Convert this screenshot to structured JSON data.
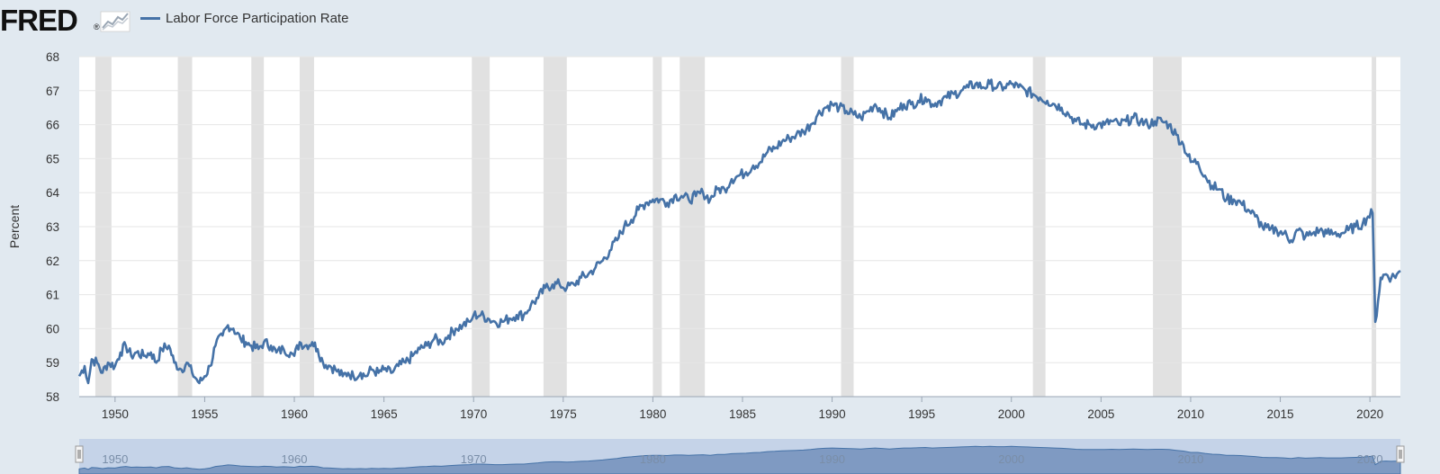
{
  "header": {
    "logo_text": "FRED",
    "logo_mark": "®",
    "legend_label": "Labor Force Participation Rate"
  },
  "colors": {
    "line": "#4572a7",
    "recession": "#e1e1e1",
    "grid": "#e6e6e6",
    "navigator_fill": "#7f9ac2",
    "navigator_bg": "#c5d3e8"
  },
  "icons": {
    "logo_graph": "fred-chart-icon",
    "legend": "legend-line-icon"
  },
  "chart_data": {
    "type": "line",
    "title": "",
    "xlabel": "",
    "ylabel": "Percent",
    "ylim": [
      58,
      68
    ],
    "xlim": [
      1948.0,
      2021.7
    ],
    "grid": "horizontal",
    "legend": "top-left",
    "y_ticks": [
      "58",
      "59",
      "60",
      "61",
      "62",
      "63",
      "64",
      "65",
      "66",
      "67",
      "68"
    ],
    "x_ticks": [
      "1950",
      "1955",
      "1960",
      "1965",
      "1970",
      "1975",
      "1980",
      "1985",
      "1990",
      "1995",
      "2000",
      "2005",
      "2010",
      "2015",
      "2020"
    ],
    "navigator_ticks": [
      "1950",
      "1960",
      "1970",
      "1980",
      "1990",
      "2000",
      "2010",
      "2020"
    ],
    "recessions": [
      [
        1948.9,
        1949.8
      ],
      [
        1953.5,
        1954.3
      ],
      [
        1957.6,
        1958.3
      ],
      [
        1960.3,
        1961.1
      ],
      [
        1969.9,
        1970.9
      ],
      [
        1973.9,
        1975.2
      ],
      [
        1980.0,
        1980.5
      ],
      [
        1981.5,
        1982.9
      ],
      [
        1990.5,
        1991.2
      ],
      [
        2001.2,
        2001.9
      ],
      [
        2007.9,
        2009.5
      ],
      [
        2020.1,
        2020.35
      ]
    ],
    "series": [
      {
        "name": "Labor Force Participation Rate",
        "points": [
          [
            1948.0,
            58.6
          ],
          [
            1948.3,
            58.9
          ],
          [
            1948.5,
            58.4
          ],
          [
            1948.7,
            59.1
          ],
          [
            1949.0,
            59.0
          ],
          [
            1949.3,
            58.7
          ],
          [
            1949.6,
            59.0
          ],
          [
            1950.0,
            58.9
          ],
          [
            1950.3,
            59.3
          ],
          [
            1950.6,
            59.5
          ],
          [
            1950.9,
            59.2
          ],
          [
            1951.2,
            59.3
          ],
          [
            1951.6,
            59.2
          ],
          [
            1952.0,
            59.3
          ],
          [
            1952.3,
            59.0
          ],
          [
            1952.6,
            59.4
          ],
          [
            1953.0,
            59.5
          ],
          [
            1953.3,
            59.0
          ],
          [
            1953.7,
            58.8
          ],
          [
            1954.0,
            59.0
          ],
          [
            1954.3,
            58.7
          ],
          [
            1954.7,
            58.4
          ],
          [
            1955.0,
            58.6
          ],
          [
            1955.3,
            58.9
          ],
          [
            1955.6,
            59.5
          ],
          [
            1956.0,
            59.8
          ],
          [
            1956.3,
            60.1
          ],
          [
            1956.6,
            60.0
          ],
          [
            1957.0,
            59.7
          ],
          [
            1957.3,
            59.6
          ],
          [
            1957.6,
            59.5
          ],
          [
            1958.0,
            59.4
          ],
          [
            1958.3,
            59.6
          ],
          [
            1958.7,
            59.5
          ],
          [
            1959.0,
            59.3
          ],
          [
            1959.4,
            59.4
          ],
          [
            1959.8,
            59.3
          ],
          [
            1960.0,
            59.2
          ],
          [
            1960.3,
            59.6
          ],
          [
            1960.6,
            59.5
          ],
          [
            1961.0,
            59.6
          ],
          [
            1961.3,
            59.4
          ],
          [
            1961.6,
            59.0
          ],
          [
            1962.0,
            58.9
          ],
          [
            1962.3,
            58.8
          ],
          [
            1962.7,
            58.6
          ],
          [
            1963.0,
            58.7
          ],
          [
            1963.3,
            58.6
          ],
          [
            1963.7,
            58.7
          ],
          [
            1964.0,
            58.6
          ],
          [
            1964.3,
            58.8
          ],
          [
            1964.7,
            58.7
          ],
          [
            1965.0,
            58.8
          ],
          [
            1965.4,
            58.7
          ],
          [
            1965.8,
            58.9
          ],
          [
            1966.2,
            59.0
          ],
          [
            1966.6,
            59.2
          ],
          [
            1967.0,
            59.4
          ],
          [
            1967.4,
            59.5
          ],
          [
            1967.8,
            59.7
          ],
          [
            1968.2,
            59.6
          ],
          [
            1968.6,
            59.8
          ],
          [
            1969.0,
            60.0
          ],
          [
            1969.4,
            60.1
          ],
          [
            1969.8,
            60.2
          ],
          [
            1970.0,
            60.4
          ],
          [
            1970.4,
            60.4
          ],
          [
            1970.8,
            60.3
          ],
          [
            1971.2,
            60.2
          ],
          [
            1971.6,
            60.2
          ],
          [
            1972.0,
            60.3
          ],
          [
            1972.4,
            60.4
          ],
          [
            1972.8,
            60.4
          ],
          [
            1973.2,
            60.7
          ],
          [
            1973.6,
            60.9
          ],
          [
            1974.0,
            61.2
          ],
          [
            1974.4,
            61.3
          ],
          [
            1974.8,
            61.3
          ],
          [
            1975.2,
            61.2
          ],
          [
            1975.6,
            61.3
          ],
          [
            1976.0,
            61.5
          ],
          [
            1976.4,
            61.6
          ],
          [
            1976.8,
            61.8
          ],
          [
            1977.2,
            62.0
          ],
          [
            1977.6,
            62.3
          ],
          [
            1978.0,
            62.6
          ],
          [
            1978.4,
            63.0
          ],
          [
            1978.8,
            63.2
          ],
          [
            1979.2,
            63.5
          ],
          [
            1979.6,
            63.7
          ],
          [
            1980.0,
            63.8
          ],
          [
            1980.4,
            63.8
          ],
          [
            1980.8,
            63.7
          ],
          [
            1981.2,
            63.9
          ],
          [
            1981.6,
            63.9
          ],
          [
            1982.0,
            63.8
          ],
          [
            1982.4,
            63.9
          ],
          [
            1982.8,
            64.0
          ],
          [
            1983.2,
            63.8
          ],
          [
            1983.6,
            64.1
          ],
          [
            1984.0,
            64.1
          ],
          [
            1984.4,
            64.4
          ],
          [
            1984.8,
            64.5
          ],
          [
            1985.2,
            64.6
          ],
          [
            1985.6,
            64.8
          ],
          [
            1986.0,
            64.9
          ],
          [
            1986.4,
            65.2
          ],
          [
            1986.8,
            65.3
          ],
          [
            1987.2,
            65.5
          ],
          [
            1987.6,
            65.6
          ],
          [
            1988.0,
            65.7
          ],
          [
            1988.4,
            65.8
          ],
          [
            1988.8,
            66.0
          ],
          [
            1989.2,
            66.3
          ],
          [
            1989.6,
            66.5
          ],
          [
            1990.0,
            66.6
          ],
          [
            1990.4,
            66.5
          ],
          [
            1990.8,
            66.4
          ],
          [
            1991.2,
            66.3
          ],
          [
            1991.6,
            66.2
          ],
          [
            1992.0,
            66.4
          ],
          [
            1992.4,
            66.6
          ],
          [
            1992.8,
            66.4
          ],
          [
            1993.2,
            66.2
          ],
          [
            1993.6,
            66.4
          ],
          [
            1994.0,
            66.6
          ],
          [
            1994.4,
            66.6
          ],
          [
            1994.8,
            66.7
          ],
          [
            1995.2,
            66.8
          ],
          [
            1995.6,
            66.6
          ],
          [
            1996.0,
            66.7
          ],
          [
            1996.4,
            66.8
          ],
          [
            1996.8,
            66.9
          ],
          [
            1997.2,
            67.0
          ],
          [
            1997.6,
            67.1
          ],
          [
            1998.0,
            67.2
          ],
          [
            1998.4,
            67.1
          ],
          [
            1998.8,
            67.2
          ],
          [
            1999.2,
            67.1
          ],
          [
            1999.6,
            67.1
          ],
          [
            2000.0,
            67.2
          ],
          [
            2000.4,
            67.1
          ],
          [
            2000.8,
            67.0
          ],
          [
            2001.2,
            66.9
          ],
          [
            2001.6,
            66.8
          ],
          [
            2002.0,
            66.7
          ],
          [
            2002.4,
            66.6
          ],
          [
            2002.8,
            66.5
          ],
          [
            2003.2,
            66.3
          ],
          [
            2003.6,
            66.1
          ],
          [
            2004.0,
            66.0
          ],
          [
            2004.4,
            66.0
          ],
          [
            2004.8,
            66.0
          ],
          [
            2005.2,
            66.0
          ],
          [
            2005.6,
            66.1
          ],
          [
            2006.0,
            66.0
          ],
          [
            2006.4,
            66.1
          ],
          [
            2006.8,
            66.2
          ],
          [
            2007.2,
            66.1
          ],
          [
            2007.6,
            66.0
          ],
          [
            2008.0,
            66.1
          ],
          [
            2008.4,
            66.1
          ],
          [
            2008.8,
            66.0
          ],
          [
            2009.2,
            65.7
          ],
          [
            2009.6,
            65.4
          ],
          [
            2010.0,
            64.9
          ],
          [
            2010.4,
            64.9
          ],
          [
            2010.8,
            64.5
          ],
          [
            2011.2,
            64.2
          ],
          [
            2011.6,
            64.1
          ],
          [
            2012.0,
            63.8
          ],
          [
            2012.4,
            63.8
          ],
          [
            2012.8,
            63.7
          ],
          [
            2013.2,
            63.5
          ],
          [
            2013.6,
            63.3
          ],
          [
            2014.0,
            63.0
          ],
          [
            2014.4,
            62.9
          ],
          [
            2014.8,
            62.9
          ],
          [
            2015.2,
            62.8
          ],
          [
            2015.6,
            62.6
          ],
          [
            2016.0,
            62.9
          ],
          [
            2016.4,
            62.7
          ],
          [
            2016.8,
            62.8
          ],
          [
            2017.2,
            62.9
          ],
          [
            2017.6,
            62.8
          ],
          [
            2018.0,
            62.8
          ],
          [
            2018.4,
            62.8
          ],
          [
            2018.8,
            62.9
          ],
          [
            2019.2,
            63.0
          ],
          [
            2019.6,
            63.1
          ],
          [
            2019.9,
            63.3
          ],
          [
            2020.15,
            63.4
          ],
          [
            2020.3,
            60.2
          ],
          [
            2020.45,
            60.8
          ],
          [
            2020.6,
            61.5
          ],
          [
            2020.9,
            61.6
          ],
          [
            2021.2,
            61.5
          ],
          [
            2021.5,
            61.6
          ],
          [
            2021.7,
            61.7
          ]
        ]
      }
    ]
  }
}
